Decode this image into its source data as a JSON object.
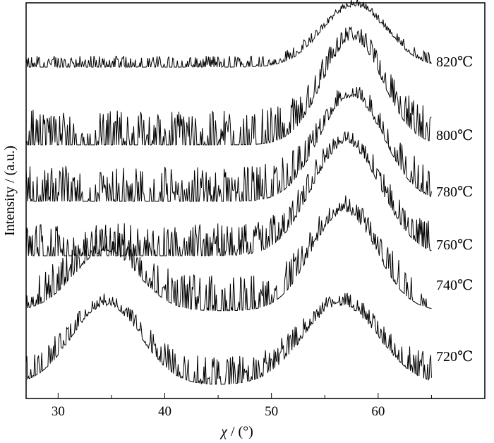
{
  "chart_data": {
    "type": "line",
    "title": "",
    "xlabel_symbol": "χ",
    "xlabel_unit": " / (°)",
    "ylabel": "Intensity / (a.u.)",
    "xlim": [
      27,
      70
    ],
    "xticks": [
      30,
      40,
      50,
      60
    ],
    "xtick_labels": [
      "30",
      "40",
      "50",
      "60"
    ],
    "y_ticks_shown": false,
    "grid": false,
    "legend": "none",
    "stacking": "vertically offset curves, one per temperature",
    "line_color": "#000000",
    "series": [
      {
        "name": "820℃",
        "x_range": [
          27,
          65
        ],
        "noise_floor_x": [
          27,
          51
        ],
        "peaks": [
          {
            "center": 57.8,
            "width": 3.0,
            "height": 1.0
          }
        ],
        "noise": 0.16
      },
      {
        "name": "800℃",
        "x_range": [
          27,
          65
        ],
        "noise_floor_x": [
          27,
          52
        ],
        "peaks": [
          {
            "center": 57.6,
            "width": 2.8,
            "height": 1.0
          }
        ],
        "noise": 0.3
      },
      {
        "name": "780℃",
        "x_range": [
          27,
          65
        ],
        "noise_floor_x": [
          27,
          51
        ],
        "peaks": [
          {
            "center": 57.5,
            "width": 3.0,
            "height": 1.0
          }
        ],
        "noise": 0.3
      },
      {
        "name": "760℃",
        "x_range": [
          27,
          65
        ],
        "noise_floor_x": [
          27,
          50
        ],
        "peaks": [
          {
            "center": 57.0,
            "width": 3.2,
            "height": 1.0
          }
        ],
        "noise": 0.28
      },
      {
        "name": "740℃",
        "x_range": [
          27,
          65
        ],
        "noise_floor_x": [
          27,
          50
        ],
        "peaks": [
          {
            "center": 56.8,
            "width": 3.0,
            "height": 1.0
          },
          {
            "center": 34.5,
            "width": 3.0,
            "height": 0.6
          }
        ],
        "noise": 0.32
      },
      {
        "name": "720℃",
        "x_range": [
          27,
          65
        ],
        "noise_floor_x": [
          27,
          65
        ],
        "peaks": [
          {
            "center": 34.5,
            "width": 3.2,
            "height": 1.0
          },
          {
            "center": 56.5,
            "width": 3.5,
            "height": 1.0
          }
        ],
        "noise": 0.25
      }
    ]
  }
}
